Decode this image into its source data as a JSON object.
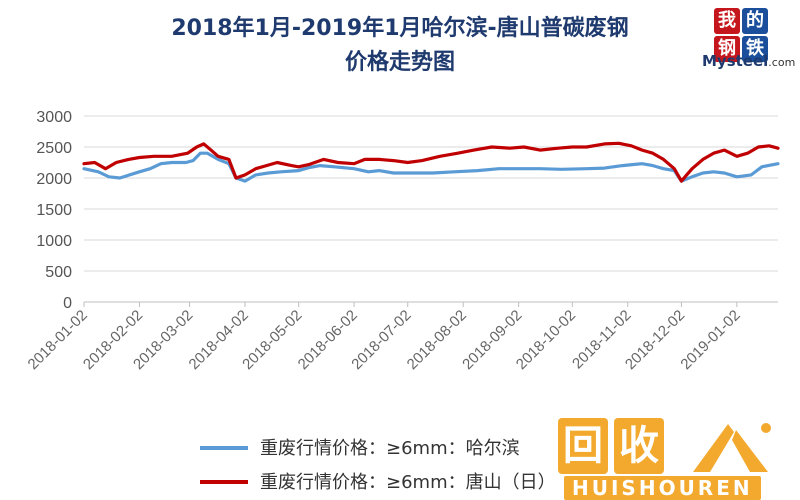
{
  "chart_data": {
    "type": "line",
    "title_line1": "2018年1月-2019年1月哈尔滨-唐山普碳废钢",
    "title_line2": "价格走势图",
    "ylim": [
      0,
      3000
    ],
    "yticks": [
      0,
      500,
      1000,
      1500,
      2000,
      2500,
      3000
    ],
    "x_start": "2018-01-02",
    "x_end": "2019-01-25",
    "xticks": [
      "2018-01-02",
      "2018-02-02",
      "2018-03-02",
      "2018-04-02",
      "2018-05-02",
      "2018-06-02",
      "2018-07-02",
      "2018-08-02",
      "2018-09-02",
      "2018-10-02",
      "2018-11-02",
      "2018-12-02",
      "2019-01-02"
    ],
    "grid": true,
    "legend_position": "bottom",
    "series": [
      {
        "name": "重废行情价格：≥6mm：哈尔滨",
        "color": "#5b9bd5",
        "x": [
          "2018-01-02",
          "2018-01-10",
          "2018-01-16",
          "2018-01-22",
          "2018-02-02",
          "2018-02-08",
          "2018-02-14",
          "2018-02-20",
          "2018-02-28",
          "2018-03-04",
          "2018-03-08",
          "2018-03-12",
          "2018-03-18",
          "2018-03-24",
          "2018-03-28",
          "2018-04-02",
          "2018-04-08",
          "2018-04-15",
          "2018-04-22",
          "2018-05-02",
          "2018-05-08",
          "2018-05-14",
          "2018-05-22",
          "2018-06-02",
          "2018-06-10",
          "2018-06-16",
          "2018-06-24",
          "2018-07-02",
          "2018-07-16",
          "2018-07-28",
          "2018-08-10",
          "2018-08-22",
          "2018-09-02",
          "2018-09-14",
          "2018-09-26",
          "2018-10-10",
          "2018-10-20",
          "2018-10-30",
          "2018-11-10",
          "2018-11-16",
          "2018-11-22",
          "2018-11-28",
          "2018-12-02",
          "2018-12-08",
          "2018-12-14",
          "2018-12-20",
          "2018-12-26",
          "2019-01-02",
          "2019-01-10",
          "2019-01-16",
          "2019-01-25"
        ],
        "values": [
          2150,
          2100,
          2020,
          2000,
          2100,
          2150,
          2230,
          2250,
          2250,
          2280,
          2400,
          2400,
          2300,
          2230,
          2000,
          1950,
          2050,
          2080,
          2100,
          2120,
          2170,
          2200,
          2180,
          2150,
          2100,
          2120,
          2080,
          2080,
          2080,
          2100,
          2120,
          2150,
          2150,
          2150,
          2140,
          2150,
          2160,
          2200,
          2230,
          2200,
          2150,
          2120,
          1950,
          2020,
          2080,
          2100,
          2080,
          2020,
          2050,
          2180,
          2230
        ]
      },
      {
        "name": "重废行情价格：≥6mm：唐山（日）",
        "color": "#c00000",
        "x": [
          "2018-01-02",
          "2018-01-08",
          "2018-01-14",
          "2018-01-20",
          "2018-01-27",
          "2018-02-02",
          "2018-02-10",
          "2018-02-20",
          "2018-03-01",
          "2018-03-06",
          "2018-03-10",
          "2018-03-14",
          "2018-03-18",
          "2018-03-24",
          "2018-03-28",
          "2018-04-02",
          "2018-04-08",
          "2018-04-14",
          "2018-04-20",
          "2018-04-28",
          "2018-05-02",
          "2018-05-08",
          "2018-05-16",
          "2018-05-24",
          "2018-06-02",
          "2018-06-08",
          "2018-06-16",
          "2018-06-24",
          "2018-07-02",
          "2018-07-10",
          "2018-07-20",
          "2018-07-30",
          "2018-08-08",
          "2018-08-18",
          "2018-08-28",
          "2018-09-05",
          "2018-09-14",
          "2018-09-24",
          "2018-10-02",
          "2018-10-10",
          "2018-10-20",
          "2018-10-28",
          "2018-11-04",
          "2018-11-10",
          "2018-11-16",
          "2018-11-22",
          "2018-11-28",
          "2018-12-02",
          "2018-12-08",
          "2018-12-14",
          "2018-12-20",
          "2018-12-26",
          "2019-01-02",
          "2019-01-08",
          "2019-01-14",
          "2019-01-20",
          "2019-01-25"
        ],
        "values": [
          2230,
          2250,
          2150,
          2250,
          2300,
          2330,
          2350,
          2350,
          2400,
          2500,
          2550,
          2450,
          2350,
          2300,
          2000,
          2050,
          2150,
          2200,
          2250,
          2200,
          2180,
          2220,
          2300,
          2250,
          2230,
          2300,
          2300,
          2280,
          2250,
          2280,
          2350,
          2400,
          2450,
          2500,
          2480,
          2500,
          2450,
          2480,
          2500,
          2500,
          2550,
          2560,
          2520,
          2450,
          2400,
          2300,
          2150,
          1950,
          2150,
          2300,
          2400,
          2450,
          2350,
          2400,
          2500,
          2520,
          2480
        ]
      }
    ]
  },
  "logo": {
    "chars": [
      "我",
      "的",
      "钢",
      "铁"
    ],
    "word": "Mysteel",
    "suffix": ".com"
  },
  "watermark": {
    "char1": "回",
    "char2": "收",
    "brand": "HUISHOUREN"
  }
}
